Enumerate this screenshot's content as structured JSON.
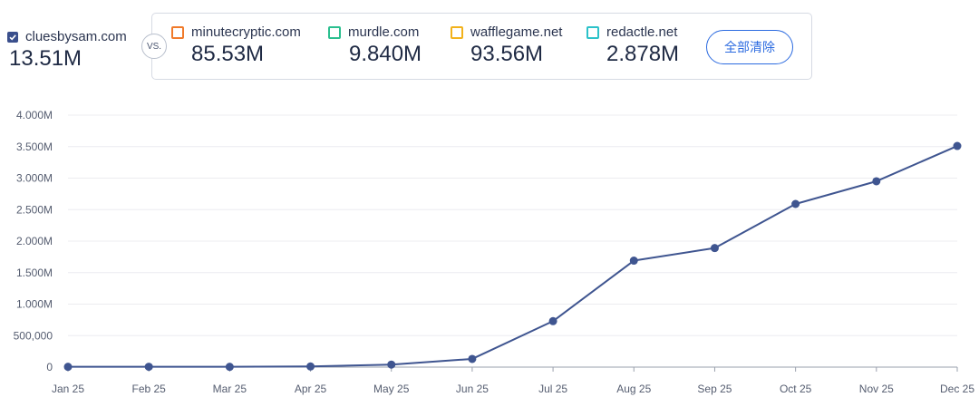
{
  "main_site": {
    "name": "cluesbysam.com",
    "value": "13.51M",
    "checked": true,
    "color": "#3a4f8c"
  },
  "vs_label": "VS.",
  "competitors": [
    {
      "name": "minutecryptic.com",
      "value": "85.53M",
      "color": "#f07a2a"
    },
    {
      "name": "murdle.com",
      "value": "9.840M",
      "color": "#2bbf8f"
    },
    {
      "name": "wafflegame.net",
      "value": "93.56M",
      "color": "#f2b21b"
    },
    {
      "name": "redactle.net",
      "value": "2.878M",
      "color": "#2cc2c9"
    }
  ],
  "clear_all_label": "全部清除",
  "chart_data": {
    "type": "line",
    "x": [
      "Jan 25",
      "Feb 25",
      "Mar 25",
      "Apr 25",
      "May 25",
      "Jun 25",
      "Jul 25",
      "Aug 25",
      "Sep 25",
      "Oct 25",
      "Nov 25",
      "Dec 25"
    ],
    "series": [
      {
        "name": "cluesbysam.com",
        "color": "#3f5590",
        "values": [
          5000,
          6000,
          5000,
          10000,
          40000,
          130000,
          730000,
          1690000,
          1890000,
          2590000,
          2950000,
          3510000
        ]
      }
    ],
    "yticks": [
      {
        "value": 0,
        "label": "0"
      },
      {
        "value": 500000,
        "label": "500,000"
      },
      {
        "value": 1000000,
        "label": "1.000M"
      },
      {
        "value": 1500000,
        "label": "1.500M"
      },
      {
        "value": 2000000,
        "label": "2.000M"
      },
      {
        "value": 2500000,
        "label": "2.500M"
      },
      {
        "value": 3000000,
        "label": "3.000M"
      },
      {
        "value": 3500000,
        "label": "3.500M"
      },
      {
        "value": 4000000,
        "label": "4.000M"
      }
    ],
    "ylim": [
      0,
      4000000
    ],
    "grid": true
  }
}
